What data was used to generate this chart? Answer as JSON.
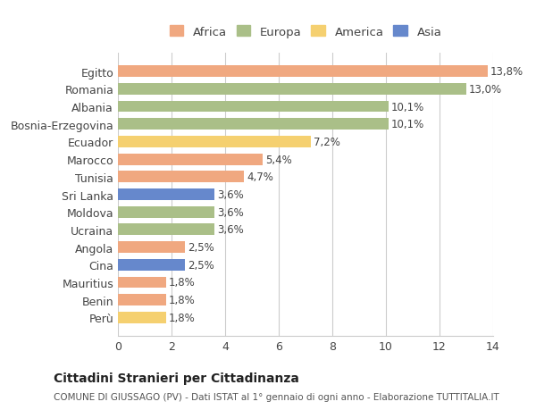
{
  "countries": [
    "Egitto",
    "Romania",
    "Albania",
    "Bosnia-Erzegovina",
    "Ecuador",
    "Marocco",
    "Tunisia",
    "Sri Lanka",
    "Moldova",
    "Ucraina",
    "Angola",
    "Cina",
    "Mauritius",
    "Benin",
    "Perù"
  ],
  "values": [
    13.8,
    13.0,
    10.1,
    10.1,
    7.2,
    5.4,
    4.7,
    3.6,
    3.6,
    3.6,
    2.5,
    2.5,
    1.8,
    1.8,
    1.8
  ],
  "labels": [
    "13,8%",
    "13,0%",
    "10,1%",
    "10,1%",
    "7,2%",
    "5,4%",
    "4,7%",
    "3,6%",
    "3,6%",
    "3,6%",
    "2,5%",
    "2,5%",
    "1,8%",
    "1,8%",
    "1,8%"
  ],
  "continents": [
    "Africa",
    "Europa",
    "Europa",
    "Europa",
    "America",
    "Africa",
    "Africa",
    "Asia",
    "Europa",
    "Europa",
    "Africa",
    "Asia",
    "Africa",
    "Africa",
    "America"
  ],
  "continent_colors": {
    "Africa": "#F0A880",
    "Europa": "#AABF88",
    "America": "#F5D070",
    "Asia": "#6688CC"
  },
  "legend_order": [
    "Africa",
    "Europa",
    "America",
    "Asia"
  ],
  "title": "Cittadini Stranieri per Cittadinanza",
  "subtitle": "COMUNE DI GIUSSAGO (PV) - Dati ISTAT al 1° gennaio di ogni anno - Elaborazione TUTTITALIA.IT",
  "xlim": [
    0,
    14
  ],
  "xticks": [
    0,
    2,
    4,
    6,
    8,
    10,
    12,
    14
  ],
  "background_color": "#FFFFFF",
  "bar_height": 0.65,
  "grid_color": "#CCCCCC"
}
